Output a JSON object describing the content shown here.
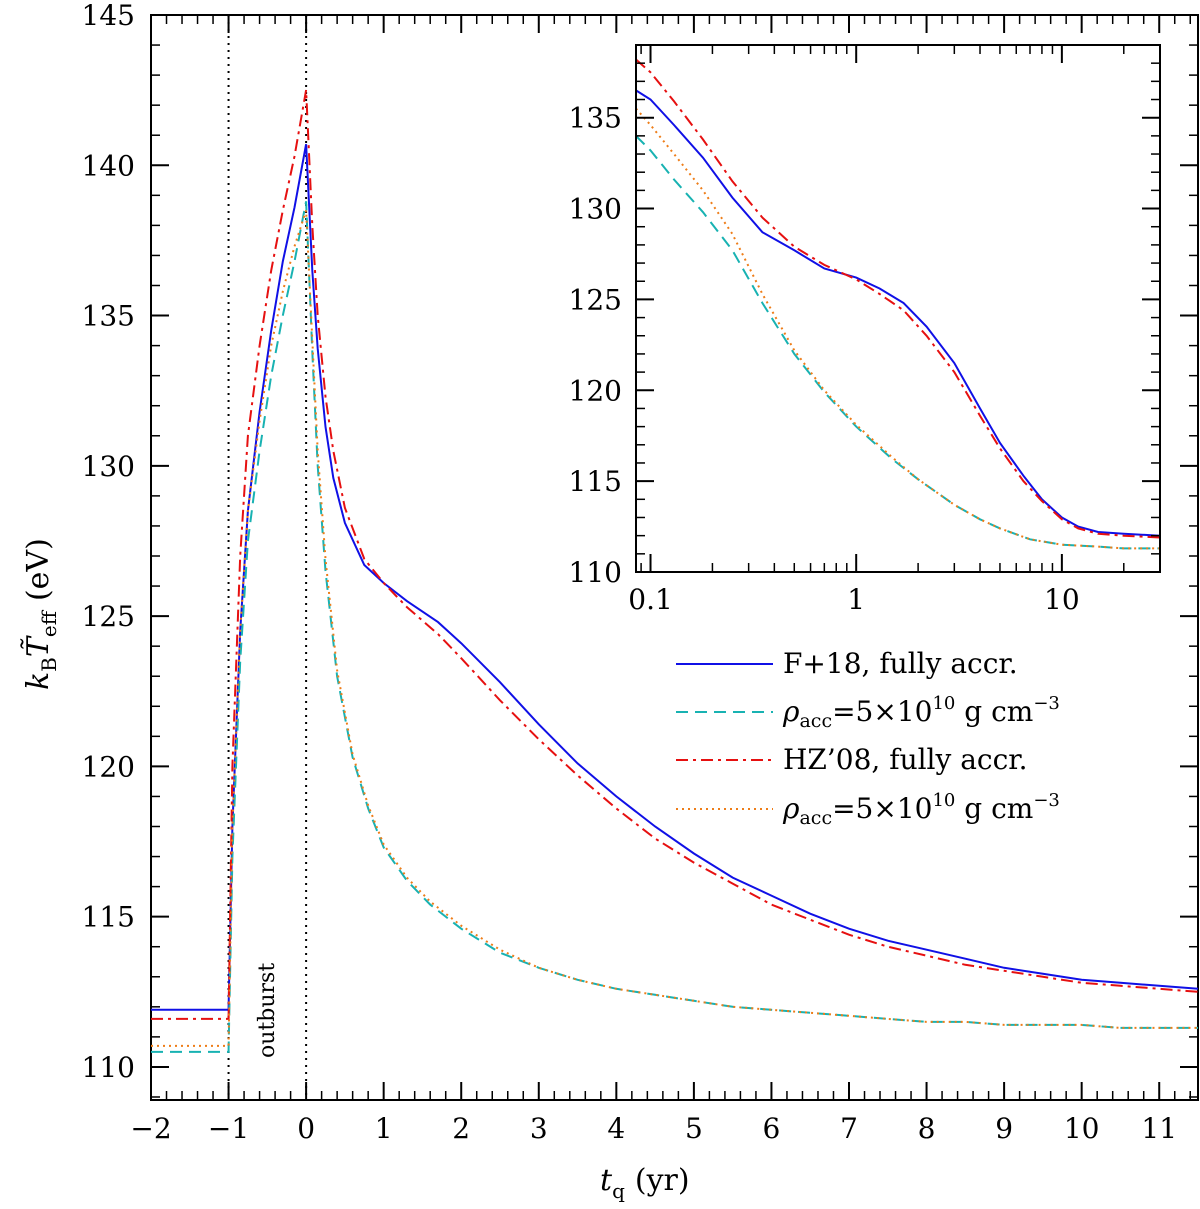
{
  "chart_data": {
    "type": "line",
    "main": {
      "xlabel_main": "t",
      "xlabel_sub": "q",
      "xlabel_unit": "(yr)",
      "ylabel_k": "k",
      "ylabel_ksub": "B",
      "ylabel_T": "T̃",
      "ylabel_Tsub": "eff",
      "ylabel_unit": "(eV)",
      "xlim": [
        -2,
        11.5
      ],
      "ylim": [
        108.9,
        145
      ],
      "xticks": [
        -2,
        -1,
        0,
        1,
        2,
        3,
        4,
        5,
        6,
        7,
        8,
        9,
        10,
        11
      ],
      "xtick_labels": [
        "−2",
        "−1",
        "0",
        "1",
        "2",
        "3",
        "4",
        "5",
        "6",
        "7",
        "8",
        "9",
        "10",
        "11"
      ],
      "yticks": [
        110,
        115,
        120,
        125,
        130,
        135,
        140,
        145
      ],
      "ytick_labels": [
        "110",
        "115",
        "120",
        "125",
        "130",
        "135",
        "140",
        "145"
      ],
      "vlines": [
        -1,
        0
      ],
      "annotation": "outburst",
      "series": [
        {
          "key": "f18_full",
          "name": "F+18, fully accr.",
          "color": "#1010e6",
          "dash": "solid",
          "x": [
            -2,
            -1,
            -1,
            -0.95,
            -0.85,
            -0.75,
            -0.6,
            -0.45,
            -0.3,
            -0.15,
            0,
            0.08,
            0.15,
            0.25,
            0.35,
            0.5,
            0.75,
            1.0,
            1.3,
            1.7,
            2.0,
            2.5,
            3.0,
            3.5,
            4.0,
            4.5,
            5.0,
            5.5,
            6.0,
            6.5,
            7.0,
            7.5,
            8.0,
            8.5,
            9.0,
            9.5,
            10.0,
            10.5,
            11.0,
            11.5
          ],
          "y": [
            111.9,
            111.9,
            112.0,
            118.0,
            124.5,
            128.5,
            131.8,
            134.5,
            136.8,
            138.6,
            140.7,
            136.5,
            133.9,
            131.3,
            129.6,
            128.1,
            126.7,
            126.1,
            125.5,
            124.8,
            124.1,
            122.8,
            121.4,
            120.1,
            119.0,
            118.0,
            117.1,
            116.3,
            115.7,
            115.1,
            114.6,
            114.2,
            113.9,
            113.6,
            113.3,
            113.1,
            112.9,
            112.8,
            112.7,
            112.6
          ]
        },
        {
          "key": "f18_partial",
          "name": "ρacc=5×10¹⁰ g cm⁻³",
          "color": "#18b2b2",
          "dash": "dashed",
          "x": [
            -2,
            -1,
            -1,
            -0.95,
            -0.85,
            -0.75,
            -0.6,
            -0.45,
            -0.3,
            -0.15,
            0,
            0.08,
            0.15,
            0.25,
            0.4,
            0.6,
            0.8,
            1.0,
            1.3,
            1.6,
            2.0,
            2.5,
            3.0,
            3.5,
            4.0,
            4.5,
            5.0,
            5.5,
            6.0,
            6.5,
            7.0,
            7.5,
            8.0,
            8.5,
            9.0,
            9.5,
            10.0,
            10.5,
            11.0,
            11.5
          ],
          "y": [
            110.5,
            110.5,
            110.6,
            117.0,
            123.5,
            127.5,
            130.5,
            133.0,
            135.0,
            136.8,
            138.8,
            133.8,
            130.0,
            126.5,
            123.0,
            120.3,
            118.6,
            117.3,
            116.2,
            115.4,
            114.6,
            113.8,
            113.3,
            112.9,
            112.6,
            112.4,
            112.2,
            112.0,
            111.9,
            111.8,
            111.7,
            111.6,
            111.5,
            111.5,
            111.4,
            111.4,
            111.4,
            111.3,
            111.3,
            111.3
          ]
        },
        {
          "key": "hz08_full",
          "name": "HZ’08, fully accr.",
          "color": "#e61010",
          "dash": "dashdot",
          "x": [
            -2,
            -1,
            -1,
            -0.95,
            -0.85,
            -0.75,
            -0.6,
            -0.45,
            -0.3,
            -0.15,
            0,
            0.08,
            0.15,
            0.25,
            0.35,
            0.5,
            0.75,
            1.0,
            1.3,
            1.7,
            2.0,
            2.5,
            3.0,
            3.5,
            4.0,
            4.5,
            5.0,
            5.5,
            6.0,
            6.5,
            7.0,
            7.5,
            8.0,
            8.5,
            9.0,
            9.5,
            10.0,
            10.5,
            11.0,
            11.5
          ],
          "y": [
            111.6,
            111.6,
            111.7,
            120.0,
            127.0,
            131.0,
            134.0,
            136.5,
            138.5,
            140.3,
            142.5,
            138.0,
            135.0,
            132.3,
            130.5,
            128.6,
            126.9,
            126.1,
            125.3,
            124.4,
            123.6,
            122.2,
            120.9,
            119.7,
            118.6,
            117.6,
            116.8,
            116.1,
            115.4,
            114.9,
            114.4,
            114.0,
            113.7,
            113.4,
            113.2,
            113.0,
            112.8,
            112.7,
            112.6,
            112.5
          ]
        },
        {
          "key": "hz08_partial",
          "name": "ρacc=5×10¹⁰ g cm⁻³",
          "color": "#ee7d18",
          "dash": "dotted",
          "x": [
            -2,
            -1,
            -1,
            -0.95,
            -0.85,
            -0.75,
            -0.6,
            -0.45,
            -0.3,
            -0.15,
            0,
            0.08,
            0.15,
            0.25,
            0.4,
            0.6,
            0.8,
            1.0,
            1.3,
            1.6,
            2.0,
            2.5,
            3.0,
            3.5,
            4.0,
            4.5,
            5.0,
            5.5,
            6.0,
            6.5,
            7.0,
            7.5,
            8.0,
            8.5,
            9.0,
            9.5,
            10.0,
            10.5,
            11.0,
            11.5
          ],
          "y": [
            110.7,
            110.7,
            110.8,
            118.0,
            124.5,
            128.5,
            131.5,
            134.0,
            135.8,
            137.3,
            138.5,
            134.2,
            130.5,
            126.9,
            123.2,
            120.4,
            118.7,
            117.4,
            116.3,
            115.5,
            114.7,
            113.9,
            113.3,
            112.9,
            112.6,
            112.4,
            112.2,
            112.0,
            111.9,
            111.8,
            111.7,
            111.6,
            111.5,
            111.5,
            111.4,
            111.4,
            111.4,
            111.3,
            111.3,
            111.3
          ]
        }
      ]
    },
    "inset": {
      "xscale": "log",
      "xlim": [
        0.085,
        30
      ],
      "ylim": [
        110,
        139
      ],
      "xticks": [
        0.1,
        1,
        10
      ],
      "xtick_labels": [
        "0.1",
        "1",
        "10"
      ],
      "yticks": [
        110,
        115,
        120,
        125,
        130,
        135
      ],
      "ytick_labels": [
        "110",
        "115",
        "120",
        "125",
        "130",
        "135"
      ],
      "series": [
        {
          "key": "f18_full",
          "color": "#1010e6",
          "dash": "solid",
          "x": [
            0.085,
            0.1,
            0.13,
            0.18,
            0.25,
            0.35,
            0.5,
            0.7,
            1.0,
            1.3,
            1.7,
            2.2,
            3.0,
            4.0,
            5.0,
            6.5,
            8.0,
            10.0,
            12.0,
            15.0,
            20.0,
            30.0
          ],
          "y": [
            136.5,
            136.0,
            134.6,
            132.8,
            130.6,
            128.7,
            127.7,
            126.7,
            126.2,
            125.6,
            124.8,
            123.5,
            121.5,
            119.0,
            117.1,
            115.3,
            114.0,
            113.0,
            112.5,
            112.2,
            112.1,
            112.0
          ]
        },
        {
          "key": "f18_partial",
          "color": "#18b2b2",
          "dash": "dashed",
          "x": [
            0.085,
            0.1,
            0.13,
            0.18,
            0.25,
            0.35,
            0.5,
            0.7,
            1.0,
            1.5,
            2.0,
            3.0,
            4.0,
            5.0,
            7.0,
            10.0,
            15.0,
            20.0,
            30.0
          ],
          "y": [
            134.0,
            133.2,
            131.6,
            129.8,
            127.7,
            124.8,
            122.0,
            119.9,
            118.0,
            116.2,
            115.1,
            113.7,
            112.9,
            112.4,
            111.8,
            111.5,
            111.4,
            111.3,
            111.3
          ]
        },
        {
          "key": "hz08_full",
          "color": "#e61010",
          "dash": "dashdot",
          "x": [
            0.085,
            0.1,
            0.13,
            0.18,
            0.25,
            0.35,
            0.5,
            0.7,
            1.0,
            1.3,
            1.7,
            2.2,
            3.0,
            4.0,
            5.0,
            6.5,
            8.0,
            10.0,
            12.0,
            15.0,
            20.0,
            30.0
          ],
          "y": [
            138.2,
            137.5,
            135.9,
            133.8,
            131.5,
            129.5,
            127.9,
            126.9,
            126.1,
            125.3,
            124.4,
            123.0,
            121.0,
            118.6,
            116.8,
            115.0,
            113.9,
            112.9,
            112.4,
            112.1,
            112.0,
            111.9
          ]
        },
        {
          "key": "hz08_partial",
          "color": "#ee7d18",
          "dash": "dotted",
          "x": [
            0.085,
            0.1,
            0.13,
            0.18,
            0.25,
            0.35,
            0.5,
            0.7,
            1.0,
            1.5,
            2.0,
            3.0,
            4.0,
            5.0,
            7.0,
            10.0,
            15.0,
            20.0,
            30.0
          ],
          "y": [
            135.5,
            134.6,
            133.0,
            131.0,
            128.6,
            125.3,
            122.2,
            120.0,
            118.1,
            116.3,
            115.1,
            113.7,
            112.9,
            112.4,
            111.8,
            111.5,
            111.4,
            111.3,
            111.3
          ]
        }
      ]
    },
    "legend": {
      "placement": "right, below inset",
      "entries": [
        {
          "key": "f18_full",
          "label": "F+18, fully accr.",
          "color": "#1010e6",
          "dash": "solid"
        },
        {
          "key": "f18_partial",
          "label_rho": "ρ",
          "label_sub": "acc",
          "label_eq": "=5×10",
          "label_exp": "10",
          "label_unit": " g cm",
          "label_unitexp": "−3",
          "color": "#18b2b2",
          "dash": "dashed"
        },
        {
          "key": "hz08_full",
          "label": "HZ’08, fully accr.",
          "color": "#e61010",
          "dash": "dashdot"
        },
        {
          "key": "hz08_partial",
          "label_rho": "ρ",
          "label_sub": "acc",
          "label_eq": "=5×10",
          "label_exp": "10",
          "label_unit": " g cm",
          "label_unitexp": "−3",
          "color": "#ee7d18",
          "dash": "dotted"
        }
      ]
    }
  }
}
